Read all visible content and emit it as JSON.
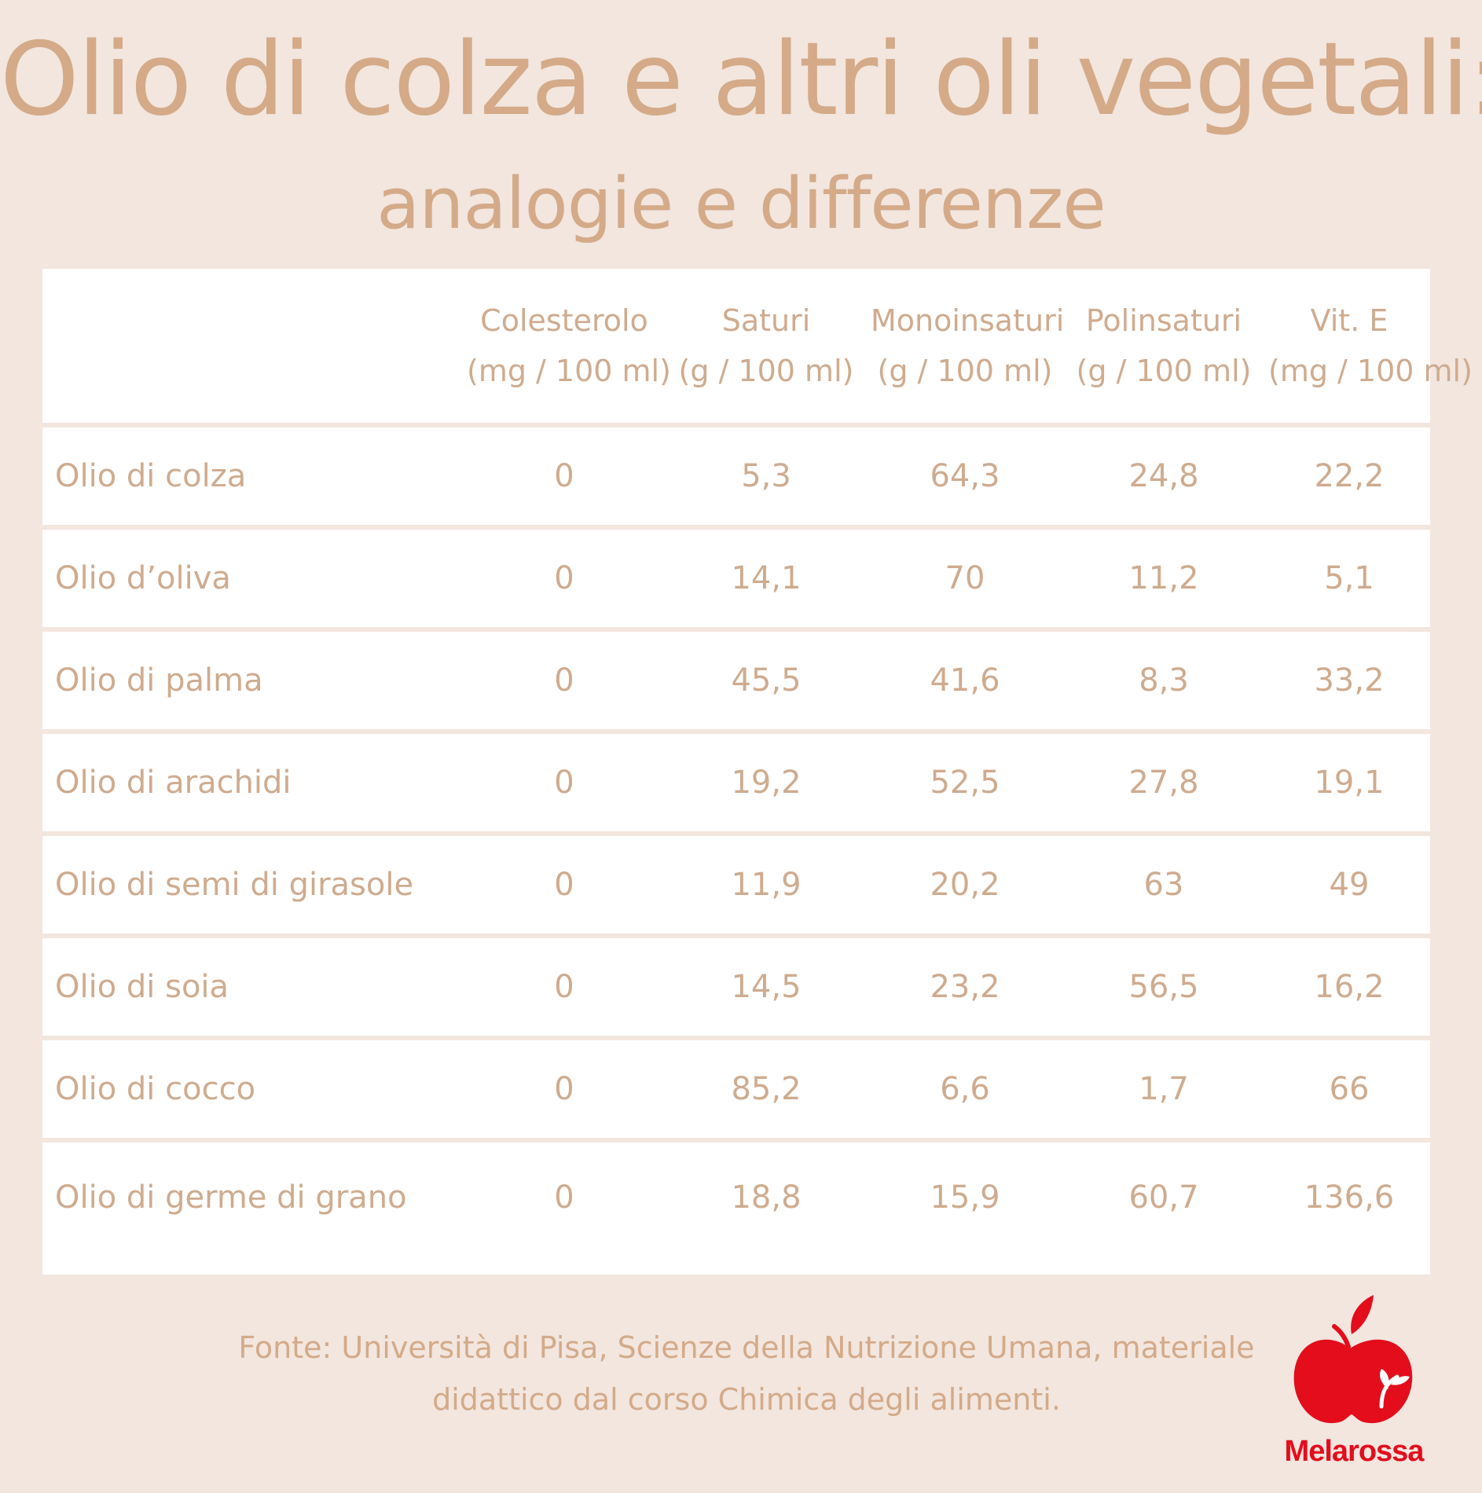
{
  "title": "Olio di colza e altri oli vegetali:",
  "subtitle": "analogie e differenze",
  "table": {
    "headers": [
      {
        "line1": "",
        "line2": ""
      },
      {
        "line1": "Colesterolo",
        "line2": "(mg / 100 ml)"
      },
      {
        "line1": "Saturi",
        "line2": "(g / 100 ml)"
      },
      {
        "line1": "Monoinsaturi",
        "line2": "(g / 100 ml)"
      },
      {
        "line1": "Polinsaturi",
        "line2": "(g / 100 ml)"
      },
      {
        "line1": "Vit. E",
        "line2": "(mg / 100 ml)"
      }
    ],
    "rows": [
      [
        "Olio di colza",
        "0",
        "5,3",
        "64,3",
        "24,8",
        "22,2"
      ],
      [
        "Olio d’oliva",
        "0",
        "14,1",
        "70",
        "11,2",
        "5,1"
      ],
      [
        "Olio di palma",
        "0",
        "45,5",
        "41,6",
        "8,3",
        "33,2"
      ],
      [
        "Olio di arachidi",
        "0",
        "19,2",
        "52,5",
        "27,8",
        "19,1"
      ],
      [
        "Olio di semi di girasole",
        "0",
        "11,9",
        "20,2",
        "63",
        "49"
      ],
      [
        "Olio di soia",
        "0",
        "14,5",
        "23,2",
        "56,5",
        "16,2"
      ],
      [
        "Olio di cocco",
        "0",
        "85,2",
        "6,6",
        "1,7",
        "66"
      ],
      [
        "Olio di germe di grano",
        "0",
        "18,8",
        "15,9",
        "60,7",
        "136,6"
      ]
    ]
  },
  "source": {
    "line1": "Fonte: Università di Pisa, Scienze della Nutrizione Umana, materiale",
    "line2": "didattico dal corso Chimica degli alimenti."
  },
  "logo": {
    "name": "Melarossa",
    "icon": "apple-icon",
    "color": "#e30d1c"
  },
  "colors": {
    "background": "#f2e6df",
    "text": "#cfab8e",
    "panel": "#ffffff"
  }
}
